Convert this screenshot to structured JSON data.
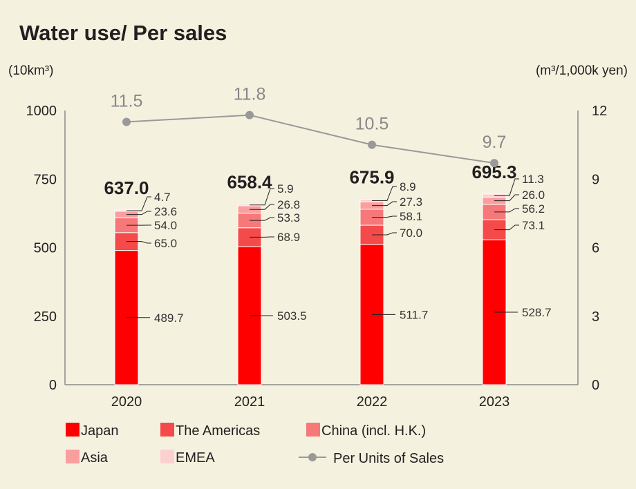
{
  "chart_data": {
    "type": "bar",
    "title": "Water use/ Per sales",
    "y_left_unit": "(10km³)",
    "y_right_unit": "(m³/1,000k yen)",
    "ylim_left": [
      0,
      1000
    ],
    "ylim_right": [
      0,
      12
    ],
    "y_left_ticks": [
      "0",
      "250",
      "500",
      "750",
      "1000"
    ],
    "y_right_ticks": [
      "0",
      "3",
      "6",
      "9",
      "12"
    ],
    "categories": [
      "2020",
      "2021",
      "2022",
      "2023"
    ],
    "series": [
      {
        "name": "Japan",
        "color": "#ff0000",
        "values": [
          489.7,
          503.5,
          511.7,
          528.7
        ],
        "labels": [
          "489.7",
          "503.5",
          "511.7",
          "528.7"
        ]
      },
      {
        "name": "The Americas",
        "color": "#f54a4a",
        "values": [
          65.0,
          68.9,
          70.0,
          73.1
        ],
        "labels": [
          "65.0",
          "68.9",
          "70.0",
          "73.1"
        ]
      },
      {
        "name": "China (incl. H.K.)",
        "color": "#f77878",
        "values": [
          54.0,
          53.3,
          58.1,
          56.2
        ],
        "labels": [
          "54.0",
          "53.3",
          "58.1",
          "56.2"
        ]
      },
      {
        "name": "Asia",
        "color": "#fa9e9e",
        "values": [
          23.6,
          26.8,
          27.3,
          26.0
        ],
        "labels": [
          "23.6",
          "26.8",
          "27.3",
          "26.0"
        ]
      },
      {
        "name": "EMEA",
        "color": "#fcd0d0",
        "values": [
          4.7,
          5.9,
          8.9,
          11.3
        ],
        "labels": [
          "4.7",
          "5.9",
          "8.9",
          "11.3"
        ]
      }
    ],
    "totals": [
      "637.0",
      "658.4",
      "675.9",
      "695.3"
    ],
    "line_series": {
      "name": "Per Units of Sales",
      "color": "#999999",
      "values": [
        11.5,
        11.8,
        10.5,
        9.7
      ],
      "labels": [
        "11.5",
        "11.8",
        "10.5",
        "9.7"
      ],
      "axis": "right"
    },
    "grid": false,
    "legend_position": "bottom"
  }
}
